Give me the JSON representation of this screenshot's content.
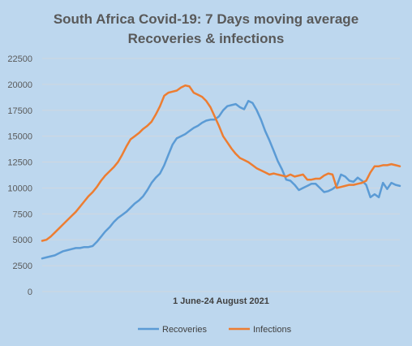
{
  "chart_data": {
    "type": "line",
    "title_line1": "South Africa Covid-19: 7 Days moving average",
    "title_line2": "Recoveries & infections",
    "xlabel": "1 June-24 August 2021",
    "ylabel": "",
    "ylim": [
      0,
      22500
    ],
    "yticks": [
      0,
      2500,
      5000,
      7500,
      10000,
      12500,
      15000,
      17500,
      20000,
      22500
    ],
    "ytick_labels": [
      "0",
      "2500",
      "5000",
      "7500",
      "10000",
      "12500",
      "15000",
      "17500",
      "20000",
      "22500"
    ],
    "grid": true,
    "legend_position": "bottom",
    "colors": {
      "background": "#bdd7ee",
      "gridline": "#d0d7df",
      "recoveries": "#5b9bd5",
      "infections": "#ed7d31"
    },
    "series": [
      {
        "name": "Recoveries",
        "values": [
          3200,
          3300,
          3400,
          3500,
          3700,
          3900,
          4000,
          4100,
          4200,
          4200,
          4300,
          4300,
          4400,
          4800,
          5300,
          5800,
          6200,
          6700,
          7100,
          7400,
          7700,
          8100,
          8500,
          8800,
          9200,
          9800,
          10500,
          11000,
          11400,
          12200,
          13200,
          14200,
          14800,
          15000,
          15200,
          15500,
          15800,
          16000,
          16300,
          16500,
          16600,
          16600,
          16900,
          17500,
          17900,
          18000,
          18100,
          17800,
          17600,
          18400,
          18200,
          17500,
          16600,
          15500,
          14600,
          13600,
          12600,
          11800,
          10800,
          10700,
          10300,
          9800,
          10000,
          10200,
          10400,
          10400,
          10000,
          9600,
          9700,
          9900,
          10200,
          11300,
          11100,
          10700,
          10600,
          11000,
          10700,
          10300,
          9100,
          9400,
          9100,
          10500,
          9900,
          10500,
          10300,
          10200
        ]
      },
      {
        "name": "Infections",
        "values": [
          4900,
          5000,
          5300,
          5700,
          6100,
          6500,
          6900,
          7300,
          7700,
          8200,
          8700,
          9200,
          9600,
          10100,
          10700,
          11200,
          11600,
          12000,
          12500,
          13200,
          14000,
          14700,
          15000,
          15300,
          15700,
          16000,
          16400,
          17100,
          17900,
          18900,
          19200,
          19300,
          19400,
          19700,
          19900,
          19800,
          19200,
          19000,
          18800,
          18400,
          17800,
          16900,
          16000,
          15000,
          14400,
          13800,
          13300,
          12900,
          12700,
          12500,
          12200,
          11900,
          11700,
          11500,
          11300,
          11400,
          11300,
          11200,
          11100,
          11300,
          11100,
          11200,
          11300,
          10800,
          10800,
          10900,
          10900,
          11200,
          11400,
          11300,
          10000,
          10100,
          10200,
          10300,
          10300,
          10400,
          10500,
          10700,
          11500,
          12100,
          12100,
          12200,
          12200,
          12300,
          12200,
          12100
        ]
      }
    ]
  }
}
